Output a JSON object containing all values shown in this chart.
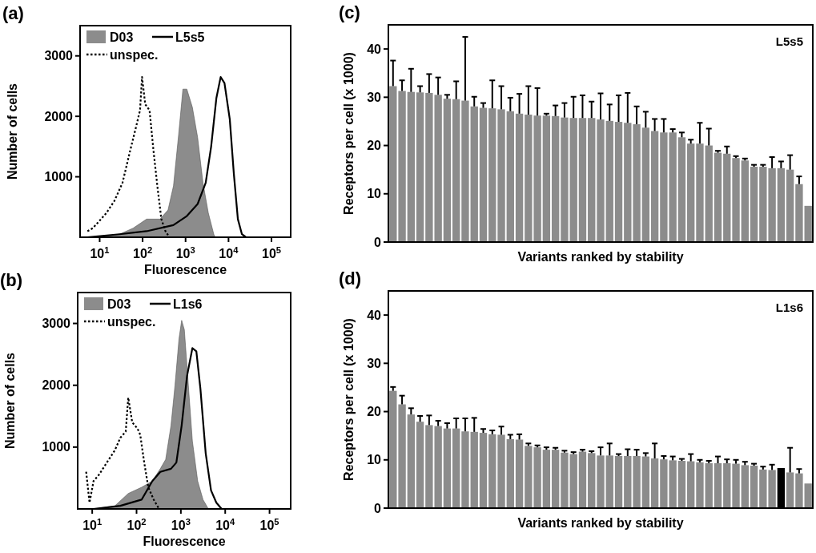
{
  "chart_data": [
    {
      "type": "line",
      "title": "(a)",
      "xlabel": "Fluorescence",
      "ylabel": "Number of cells",
      "log": "x",
      "legend": "top left",
      "grid": false,
      "xlim": [
        3.5,
        280000
      ],
      "xticks": [
        {
          "value": 10,
          "label": "10$^{1}$"
        },
        {
          "value": 100,
          "label": "10$^{2}$"
        },
        {
          "value": 1000,
          "label": "10$^{3}$"
        },
        {
          "value": 10000,
          "label": "10$^{4}$"
        },
        {
          "value": 100000,
          "label": "10$^{5}$"
        }
      ],
      "ylim": [
        0,
        3500
      ],
      "yticks": [
        1000,
        2000,
        3000
      ],
      "series": [
        {
          "name": "D03",
          "type": "area",
          "color": "#8c8c8c",
          "x": [
            10.7,
            29,
            60,
            124,
            255,
            390,
            523,
            690,
            867,
            1070,
            1440,
            1910,
            2540,
            3390,
            4540,
            4860
          ],
          "values": [
            0,
            50,
            150,
            300,
            300,
            450,
            850,
            1700,
            2450,
            2450,
            2150,
            1650,
            900,
            400,
            50,
            0
          ]
        },
        {
          "name": "L5s5",
          "type": "line",
          "line_style": "solid",
          "color": "#000000",
          "x": [
            5.2,
            29,
            124,
            520,
            1070,
            1910,
            2940,
            3940,
            5210,
            6560,
            8050,
            10700,
            13300,
            16500,
            20500,
            25500
          ],
          "values": [
            0,
            50,
            100,
            200,
            350,
            550,
            900,
            1500,
            2300,
            2650,
            2550,
            1950,
            1050,
            300,
            50,
            0
          ]
        },
        {
          "name": "unspec.",
          "type": "line",
          "line_style": "dotted",
          "color": "#000000",
          "x": [
            5.2,
            6.9,
            9.3,
            14.3,
            22,
            34,
            52,
            69,
            87,
            97,
            115,
            145,
            178,
            220,
            273,
            340,
            420
          ],
          "values": [
            100,
            150,
            250,
            400,
            600,
            900,
            1450,
            1800,
            2100,
            2650,
            2200,
            2100,
            1450,
            850,
            300,
            100,
            0
          ]
        }
      ]
    },
    {
      "type": "line",
      "title": "(b)",
      "xlabel": "Fluorescence",
      "ylabel": "Number of cells",
      "log": "x",
      "legend": "top left",
      "grid": false,
      "xlim": [
        4.7,
        300000
      ],
      "xticks": [
        {
          "value": 10,
          "label": "10$^{1}$"
        },
        {
          "value": 100,
          "label": "10$^{2}$"
        },
        {
          "value": 1000,
          "label": "10$^{3}$"
        },
        {
          "value": 10000,
          "label": "10$^{4}$"
        },
        {
          "value": 100000,
          "label": "10$^{5}$"
        }
      ],
      "ylim": [
        0,
        3500
      ],
      "yticks": [
        1000,
        2000,
        3000
      ],
      "series": [
        {
          "name": "D03",
          "type": "area",
          "color": "#8c8c8c",
          "x": [
            10.7,
            32.5,
            65,
            130,
            227,
            344,
            454,
            599,
            737,
            907,
            1042,
            1197,
            1475,
            1817,
            2397,
            3163,
            4170
          ],
          "values": [
            0,
            50,
            250,
            350,
            450,
            650,
            800,
            1350,
            2000,
            2750,
            3050,
            2900,
            2000,
            1100,
            450,
            150,
            0
          ]
        },
        {
          "name": "L1s6",
          "type": "line",
          "line_style": "solid",
          "color": "#000000",
          "x": [
            10.7,
            43,
            130,
            227,
            344,
            599,
            791,
            1042,
            1377,
            1817,
            2234,
            2755,
            3630,
            4790,
            6320,
            8320
          ],
          "values": [
            0,
            50,
            150,
            450,
            600,
            650,
            750,
            1350,
            2150,
            2600,
            2550,
            1950,
            900,
            300,
            100,
            0
          ]
        },
        {
          "name": "unspec.",
          "type": "line",
          "line_style": "dotted",
          "color": "#000000",
          "x": [
            7.3,
            8.7,
            10.7,
            14.1,
            21.4,
            32.5,
            43,
            57,
            65,
            80,
            105,
            121,
            149,
            184,
            244,
            322
          ],
          "values": [
            600,
            100,
            450,
            550,
            750,
            950,
            1150,
            1250,
            1800,
            1400,
            1300,
            1200,
            750,
            350,
            150,
            0
          ]
        }
      ]
    },
    {
      "type": "bar",
      "title": "(c)",
      "xlabel": "Variants ranked by stability",
      "ylabel": "Receptors per cell (x 1000)",
      "annotations": [
        "L5s5"
      ],
      "grid": false,
      "color": "#8c8c8c",
      "ylim": [
        0,
        45
      ],
      "yticks": [
        0,
        10,
        20,
        30,
        40
      ],
      "categories": [
        null,
        null,
        null,
        null,
        null,
        null,
        null,
        null,
        null,
        null,
        null,
        null,
        null,
        null,
        null,
        null,
        null,
        null,
        null,
        null,
        null,
        null,
        null,
        null,
        null,
        null,
        null,
        null,
        null,
        null,
        null,
        null,
        null,
        null,
        null,
        null,
        null,
        null,
        null,
        null,
        null,
        null,
        null,
        null,
        null,
        null,
        null
      ],
      "values": [
        32.3,
        31.3,
        31.1,
        31.0,
        30.9,
        30.5,
        29.7,
        29.6,
        29.3,
        28.1,
        27.8,
        27.7,
        27.5,
        27.1,
        26.6,
        26.4,
        26.2,
        26.2,
        26.1,
        25.8,
        25.7,
        25.7,
        25.7,
        25.4,
        25.1,
        24.9,
        24.7,
        24.4,
        23.7,
        23.0,
        22.7,
        22.7,
        21.7,
        20.4,
        20.4,
        20.0,
        18.5,
        18.3,
        17.4,
        16.9,
        15.6,
        15.6,
        15.3,
        15.3,
        15.0,
        12.0,
        7.5
      ],
      "errors": [
        5.3,
        2.2,
        4.8,
        1.3,
        3.9,
        3.6,
        0.8,
        3.7,
        13.2,
        2.0,
        1.0,
        5.8,
        4.8,
        2.8,
        4.1,
        5.9,
        5.7,
        0.4,
        2.2,
        3.0,
        4.4,
        4.7,
        3.4,
        5.4,
        3.4,
        5.5,
        6.2,
        3.7,
        3.3,
        2.5,
        2.8,
        0.7,
        1.0,
        0.8,
        4.3,
        3.5,
        0.4,
        1.5,
        0.4,
        0.4,
        0.4,
        0.4,
        2.3,
        1.4,
        3.0,
        1.6,
        null
      ]
    },
    {
      "type": "bar",
      "title": "(d)",
      "xlabel": "Variants ranked by stability",
      "ylabel": "Receptors per cell (x 1000)",
      "annotations": [
        "L1s6"
      ],
      "grid": false,
      "colors": [
        "#8c8c8c",
        "#8c8c8c",
        "#8c8c8c",
        "#8c8c8c",
        "#8c8c8c",
        "#8c8c8c",
        "#8c8c8c",
        "#8c8c8c",
        "#8c8c8c",
        "#8c8c8c",
        "#8c8c8c",
        "#8c8c8c",
        "#8c8c8c",
        "#8c8c8c",
        "#8c8c8c",
        "#8c8c8c",
        "#8c8c8c",
        "#8c8c8c",
        "#8c8c8c",
        "#8c8c8c",
        "#8c8c8c",
        "#8c8c8c",
        "#8c8c8c",
        "#8c8c8c",
        "#8c8c8c",
        "#8c8c8c",
        "#8c8c8c",
        "#8c8c8c",
        "#8c8c8c",
        "#8c8c8c",
        "#8c8c8c",
        "#8c8c8c",
        "#8c8c8c",
        "#8c8c8c",
        "#8c8c8c",
        "#8c8c8c",
        "#8c8c8c",
        "#8c8c8c",
        "#8c8c8c",
        "#8c8c8c",
        "#8c8c8c",
        "#8c8c8c",
        "#8c8c8c",
        "#000000",
        "#8c8c8c",
        "#8c8c8c",
        "#8c8c8c"
      ],
      "ylim": [
        0,
        45
      ],
      "yticks": [
        0,
        10,
        20,
        30,
        40
      ],
      "categories": [
        null,
        null,
        null,
        null,
        null,
        null,
        null,
        null,
        null,
        null,
        null,
        null,
        null,
        null,
        null,
        null,
        null,
        null,
        null,
        null,
        null,
        null,
        null,
        null,
        null,
        null,
        null,
        null,
        null,
        null,
        null,
        null,
        null,
        null,
        null,
        null,
        null,
        null,
        null,
        null,
        null,
        null,
        null,
        null,
        null,
        null,
        null
      ],
      "values": [
        24.3,
        21.5,
        19.4,
        17.9,
        17.2,
        17.0,
        16.5,
        16.5,
        15.9,
        15.8,
        15.6,
        15.3,
        15.2,
        14.3,
        14.2,
        12.9,
        12.6,
        12.1,
        12.1,
        11.5,
        11.2,
        11.7,
        11.4,
        10.9,
        10.9,
        10.8,
        10.8,
        10.8,
        10.7,
        10.3,
        10.1,
        9.9,
        9.8,
        9.7,
        9.5,
        9.3,
        9.3,
        9.3,
        9.2,
        8.9,
        8.8,
        8.0,
        7.9,
        8.3,
        7.4,
        7.2,
        5.1
      ],
      "errors": [
        0.8,
        1.8,
        1.3,
        1.2,
        2.0,
        1.1,
        1.1,
        2.1,
        2.7,
        2.9,
        0.8,
        0.8,
        1.7,
        0.9,
        1.1,
        0.5,
        0.4,
        0.5,
        0.4,
        0.4,
        0.4,
        0.4,
        0.4,
        1.7,
        2.5,
        0.4,
        1.4,
        1.3,
        0.7,
        3.1,
        0.7,
        0.8,
        0.4,
        1.5,
        0.5,
        0.5,
        1.4,
        0.8,
        0.8,
        0.7,
        0.4,
        0.6,
        1.1,
        null,
        5.1,
        0.9,
        null
      ]
    }
  ]
}
